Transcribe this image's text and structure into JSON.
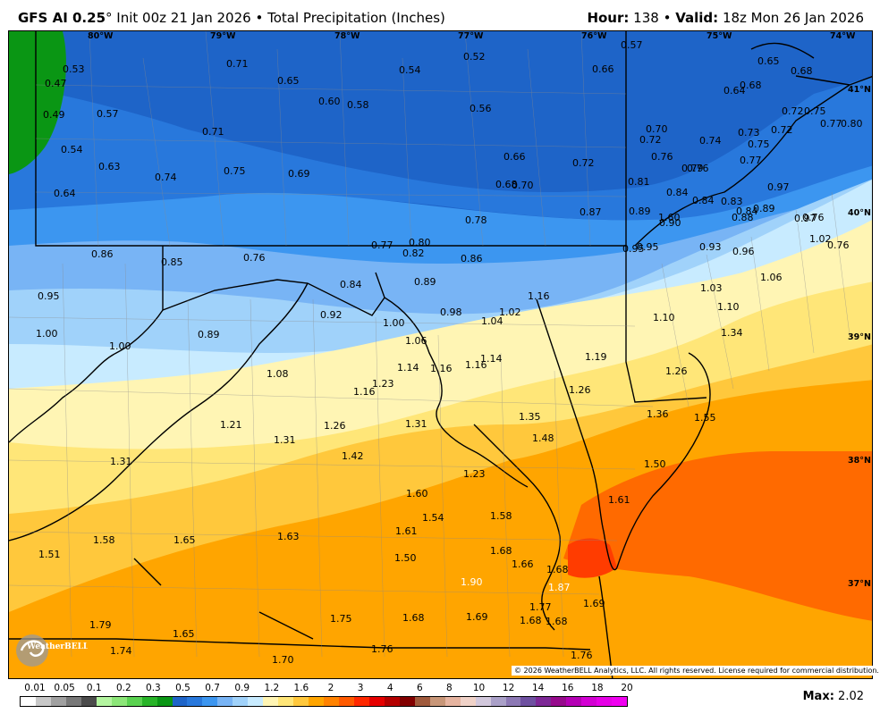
{
  "header": {
    "model": "GFS AI 0.25",
    "degree": "°",
    "init": "Init 00z 21 Jan 2026",
    "bullet": "•",
    "product": "Total Precipitation (Inches)",
    "hour_label": "Hour:",
    "hour": "138",
    "valid_label": "Valid:",
    "valid": "18z Mon 26 Jan 2026"
  },
  "map": {
    "lon_labels": [
      "80°W",
      "79°W",
      "78°W",
      "77°W",
      "76°W",
      "75°W",
      "74°W"
    ],
    "lat_labels": [
      "41°N",
      "40°N",
      "39°N",
      "38°N",
      "37°N"
    ],
    "values": [
      "0.53",
      "0.47",
      "0.49",
      "0.57",
      "0.54",
      "0.63",
      "0.64",
      "0.71",
      "0.65",
      "0.60",
      "0.58",
      "0.54",
      "0.52",
      "0.57",
      "0.66",
      "0.65",
      "0.68",
      "0.64",
      "0.68",
      "0.72",
      "0.75",
      "0.72",
      "0.77",
      "0.80",
      "0.71",
      "0.74",
      "0.75",
      "0.69",
      "0.56",
      "0.66",
      "0.68",
      "0.70",
      "0.72",
      "0.70",
      "0.72",
      "0.76",
      "0.74",
      "0.73",
      "0.75",
      "0.76",
      "0.77",
      "0.79",
      "0.81",
      "0.84",
      "0.84",
      "0.83",
      "0.84",
      "0.97",
      "0.76",
      "0.78",
      "0.87",
      "0.89",
      "0.90",
      "0.88",
      "0.89",
      "0.97",
      "1.02",
      "0.76",
      "0.86",
      "0.85",
      "0.76",
      "0.77",
      "0.80",
      "0.82",
      "0.86",
      "0.95",
      "0.93",
      "0.96",
      "0.84",
      "0.89",
      "0.95",
      "0.98",
      "1.03",
      "1.06",
      "1.10",
      "1.10",
      "1.34",
      "0.95",
      "0.92",
      "1.00",
      "1.04",
      "1.02",
      "1.06",
      "1.00",
      "1.00",
      "0.89",
      "1.08",
      "1.14",
      "1.16",
      "1.16",
      "1.14",
      "1.19",
      "1.26",
      "1.16",
      "1.16",
      "1.23",
      "1.26",
      "1.36",
      "1.35",
      "1.48",
      "1.55",
      "1.21",
      "1.31",
      "1.26",
      "1.31",
      "1.42",
      "1.31",
      "1.23",
      "1.50",
      "1.60",
      "1.54",
      "1.58",
      "1.61",
      "1.61",
      "1.63",
      "1.65",
      "1.58",
      "1.51",
      "1.50",
      "1.68",
      "1.66",
      "1.68",
      "1.87",
      "1.90",
      "1.69",
      "1.77",
      "1.69",
      "1.68",
      "1.68",
      "1.68",
      "1.75",
      "1.79",
      "1.65",
      "1.74",
      "1.70",
      "1.76",
      "1.76",
      "1.60",
      "0.81"
    ]
  },
  "copyright": "© 2026 WeatherBELL Analytics, LLC. All rights reserved. License required for commercial distribution.",
  "logo_text": "WeatherBELL",
  "legend": {
    "ticks": [
      "0.01",
      "0.05",
      "0.1",
      "0.2",
      "0.3",
      "0.5",
      "0.7",
      "0.9",
      "1.2",
      "1.6",
      "2",
      "3",
      "4",
      "6",
      "8",
      "10",
      "12",
      "14",
      "16",
      "18",
      "20"
    ],
    "colors": [
      "#ffffff",
      "#c8c8c8",
      "#a0a0a0",
      "#787878",
      "#4b4b4b",
      "#b4f5a0",
      "#8ce678",
      "#5ad250",
      "#28b428",
      "#0a9614",
      "#1e64c8",
      "#2878dc",
      "#3c96f0",
      "#78b4f5",
      "#a0d2fa",
      "#c8ebff",
      "#fff5b4",
      "#ffe678",
      "#ffc83c",
      "#ffa500",
      "#ff8200",
      "#ff5a00",
      "#ff2800",
      "#e60000",
      "#b40000",
      "#820000",
      "#a05a3c",
      "#c89678",
      "#e6b4a0",
      "#f0d2c8",
      "#d2c8dc",
      "#aaa0c8",
      "#8c78b4",
      "#6e50a0",
      "#7d2896",
      "#960a8c",
      "#b400b4",
      "#d200d2",
      "#e600e6",
      "#f000f0"
    ],
    "max_label": "Max:",
    "max_value": "2.02"
  }
}
